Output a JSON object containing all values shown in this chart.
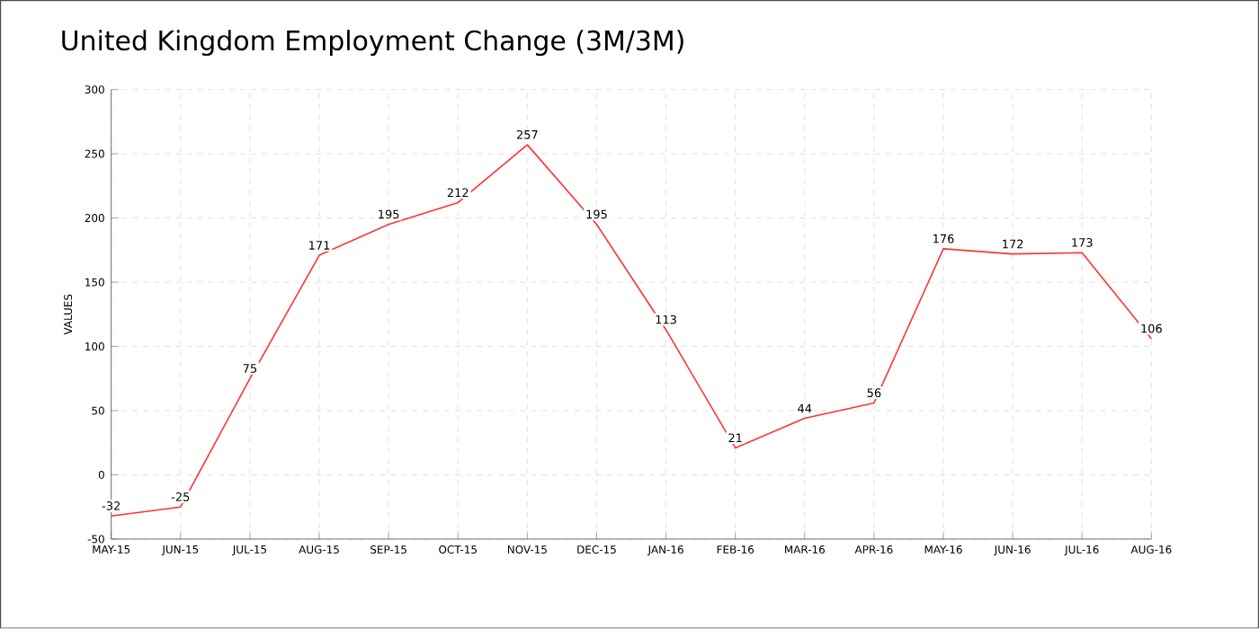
{
  "chart_data": {
    "type": "line",
    "title": "United Kingdom Employment Change (3M/3M)",
    "ylabel": "VALUES",
    "categories": [
      "MAY-15",
      "JUN-15",
      "JUL-15",
      "AUG-15",
      "SEP-15",
      "OCT-15",
      "NOV-15",
      "DEC-15",
      "JAN-16",
      "FEB-16",
      "MAR-16",
      "APR-16",
      "MAY-16",
      "JUN-16",
      "JUL-16",
      "AUG-16"
    ],
    "values": [
      -32,
      -25,
      75,
      171,
      195,
      212,
      257,
      195,
      113,
      21,
      44,
      56,
      176,
      172,
      173,
      106
    ],
    "color": "#ff3333",
    "ylim": [
      -50,
      300
    ],
    "yticks": [
      -50,
      0,
      50,
      100,
      150,
      200,
      250,
      300
    ],
    "grid": true,
    "data_labels": true,
    "marker": "none",
    "line_style": "solid"
  }
}
